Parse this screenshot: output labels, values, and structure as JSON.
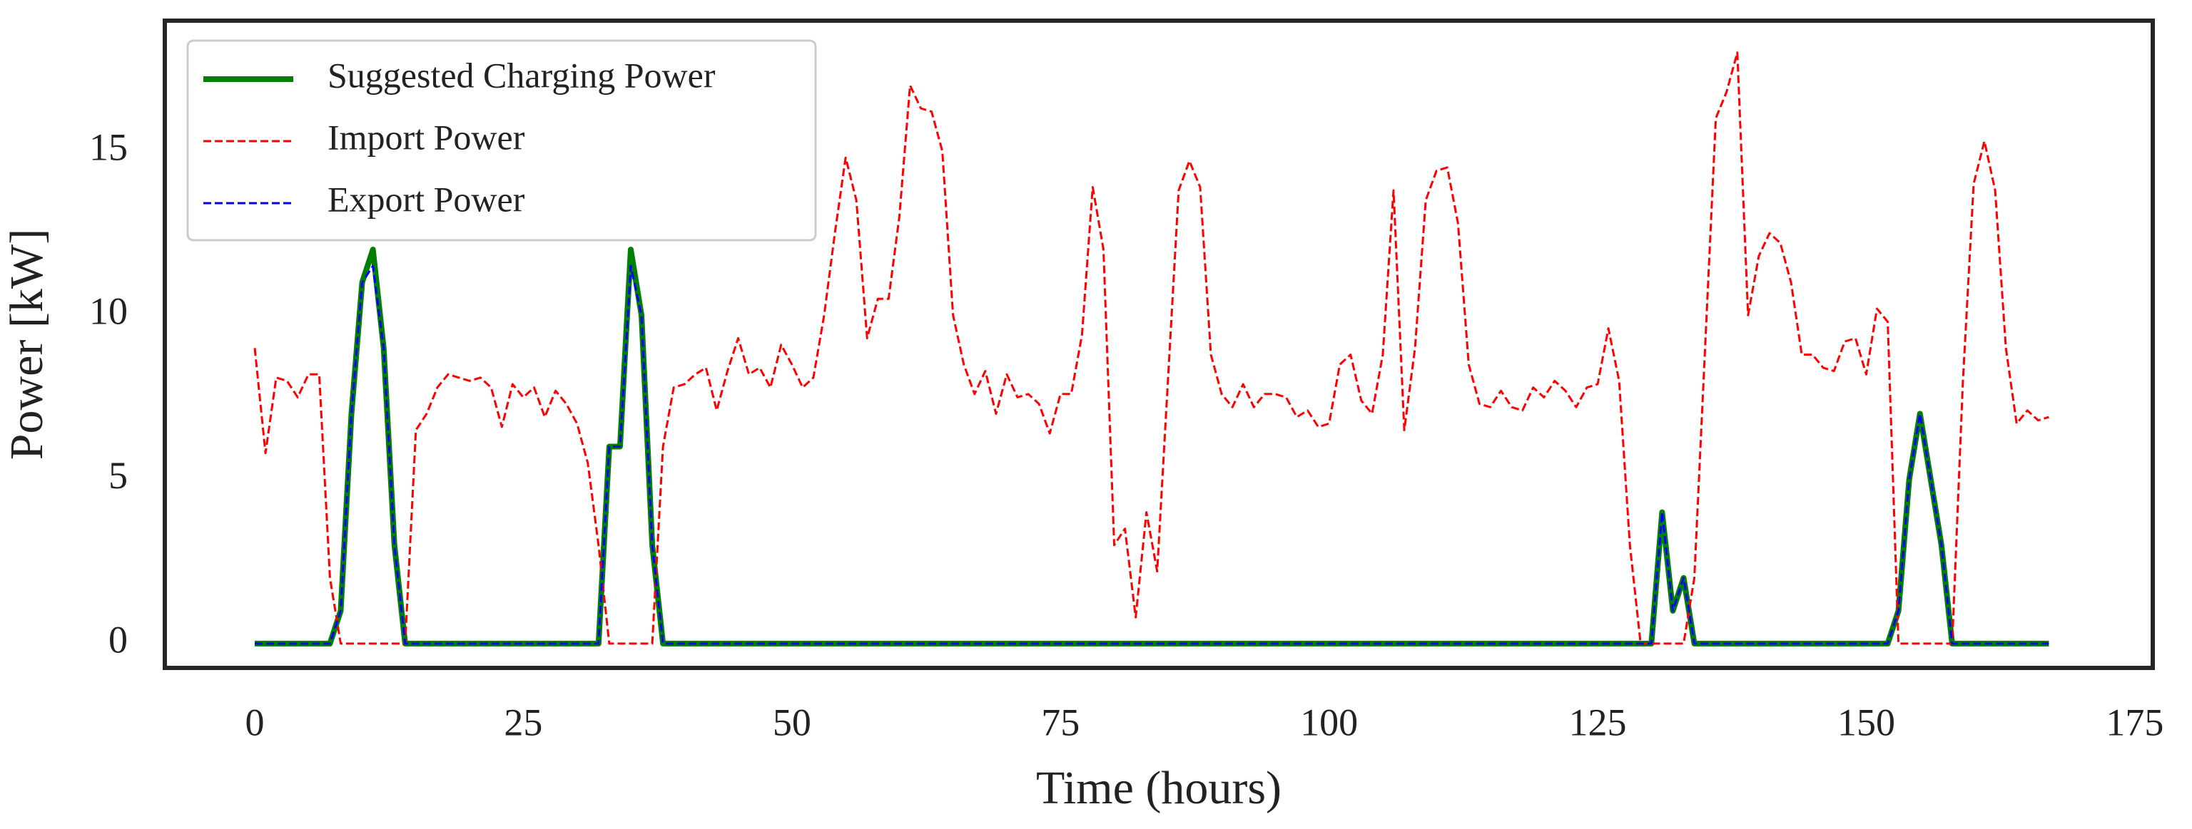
{
  "chart_data": {
    "type": "line",
    "xlabel": "Time (hours)",
    "ylabel": "Power [kW]",
    "x": [
      0,
      1,
      2,
      3,
      4,
      5,
      6,
      7,
      8,
      9,
      10,
      11,
      12,
      13,
      14,
      15,
      16,
      17,
      18,
      19,
      20,
      21,
      22,
      23,
      24,
      25,
      26,
      27,
      28,
      29,
      30,
      31,
      32,
      33,
      34,
      35,
      36,
      37,
      38,
      39,
      40,
      41,
      42,
      43,
      44,
      45,
      46,
      47,
      48,
      49,
      50,
      51,
      52,
      53,
      54,
      55,
      56,
      57,
      58,
      59,
      60,
      61,
      62,
      63,
      64,
      65,
      66,
      67,
      68,
      69,
      70,
      71,
      72,
      73,
      74,
      75,
      76,
      77,
      78,
      79,
      80,
      81,
      82,
      83,
      84,
      85,
      86,
      87,
      88,
      89,
      90,
      91,
      92,
      93,
      94,
      95,
      96,
      97,
      98,
      99,
      100,
      101,
      102,
      103,
      104,
      105,
      106,
      107,
      108,
      109,
      110,
      111,
      112,
      113,
      114,
      115,
      116,
      117,
      118,
      119,
      120,
      121,
      122,
      123,
      124,
      125,
      126,
      127,
      128,
      129,
      130,
      131,
      132,
      133,
      134,
      135,
      136,
      137,
      138,
      139,
      140,
      141,
      142,
      143,
      144,
      145,
      146,
      147,
      148,
      149,
      150,
      151,
      152,
      153,
      154,
      155,
      156,
      157,
      158,
      159,
      160,
      161,
      162,
      163,
      164,
      165,
      166,
      167
    ],
    "series": [
      {
        "name": "Suggested Charging Power",
        "color": "#008000",
        "style": "solid",
        "width": 8,
        "values": [
          0,
          0,
          0,
          0,
          0,
          0,
          0,
          0,
          1,
          7,
          11,
          12,
          9,
          3,
          0,
          0,
          0,
          0,
          0,
          0,
          0,
          0,
          0,
          0,
          0,
          0,
          0,
          0,
          0,
          0,
          0,
          0,
          0,
          6,
          6,
          12,
          10,
          3,
          0,
          0,
          0,
          0,
          0,
          0,
          0,
          0,
          0,
          0,
          0,
          0,
          0,
          0,
          0,
          0,
          0,
          0,
          0,
          0,
          0,
          0,
          0,
          0,
          0,
          0,
          0,
          0,
          0,
          0,
          0,
          0,
          0,
          0,
          0,
          0,
          0,
          0,
          0,
          0,
          0,
          0,
          0,
          0,
          0,
          0,
          0,
          0,
          0,
          0,
          0,
          0,
          0,
          0,
          0,
          0,
          0,
          0,
          0,
          0,
          0,
          0,
          0,
          0,
          0,
          0,
          0,
          0,
          0,
          0,
          0,
          0,
          0,
          0,
          0,
          0,
          0,
          0,
          0,
          0,
          0,
          0,
          0,
          0,
          0,
          0,
          0,
          0,
          0,
          0,
          0,
          0,
          0,
          4,
          1,
          2,
          0,
          0,
          0,
          0,
          0,
          0,
          0,
          0,
          0,
          0,
          0,
          0,
          0,
          0,
          0,
          0,
          0,
          0,
          0,
          1,
          5,
          7,
          5,
          3,
          0,
          0,
          0,
          0,
          0,
          0,
          0,
          0,
          0,
          0
        ]
      },
      {
        "name": "Import Power",
        "color": "#ff0000",
        "style": "dashed",
        "width": 3,
        "values": [
          9,
          5.8,
          8.1,
          8,
          7.5,
          8.2,
          8.2,
          2,
          0,
          0,
          0,
          0,
          0,
          0,
          0,
          6.5,
          7,
          7.8,
          8.2,
          8.1,
          8,
          8.1,
          7.8,
          6.6,
          7.9,
          7.5,
          7.8,
          6.9,
          7.7,
          7.3,
          6.7,
          5.5,
          3,
          0,
          0,
          0,
          0,
          0,
          6,
          7.8,
          7.9,
          8.2,
          8.4,
          7.1,
          8.3,
          9.3,
          8.2,
          8.4,
          7.8,
          9.1,
          8.5,
          7.8,
          8.1,
          10,
          12.5,
          14.8,
          13.5,
          9.3,
          10.5,
          10.5,
          13,
          17,
          16.3,
          16.2,
          15,
          10,
          8.5,
          7.6,
          8.3,
          7,
          8.2,
          7.5,
          7.6,
          7.3,
          6.4,
          7.6,
          7.6,
          9.4,
          13.9,
          12,
          3,
          3.5,
          0.8,
          4,
          2.2,
          8,
          13.8,
          14.7,
          13.9,
          8.8,
          7.6,
          7.2,
          7.9,
          7.2,
          7.6,
          7.6,
          7.5,
          6.9,
          7.1,
          6.6,
          6.7,
          8.5,
          8.8,
          7.4,
          7,
          8.8,
          13.8,
          6.5,
          9,
          13.5,
          14.4,
          14.5,
          12.8,
          8.5,
          7.3,
          7.2,
          7.7,
          7.2,
          7.1,
          7.8,
          7.5,
          8,
          7.7,
          7.2,
          7.8,
          7.9,
          9.6,
          8,
          3,
          0,
          0,
          0,
          0,
          0,
          2,
          9,
          16,
          16.8,
          18,
          10,
          11.8,
          12.5,
          12.2,
          11,
          8.8,
          8.8,
          8.4,
          8.3,
          9.2,
          9.3,
          8.2,
          10.2,
          9.8,
          0,
          0,
          0,
          0,
          0,
          0,
          8,
          14,
          15.3,
          13.8,
          9,
          6.7,
          7.1,
          6.8,
          6.9
        ]
      },
      {
        "name": "Export Power",
        "color": "#0000ff",
        "style": "dashed",
        "width": 3,
        "values": [
          0,
          0,
          0,
          0,
          0,
          0,
          0,
          0,
          1,
          7,
          11,
          11.5,
          9,
          3,
          0,
          0,
          0,
          0,
          0,
          0,
          0,
          0,
          0,
          0,
          0,
          0,
          0,
          0,
          0,
          0,
          0,
          0,
          0,
          6,
          6,
          11.5,
          10,
          3,
          0,
          0,
          0,
          0,
          0,
          0,
          0,
          0,
          0,
          0,
          0,
          0,
          0,
          0,
          0,
          0,
          0,
          0,
          0,
          0,
          0,
          0,
          0,
          0,
          0,
          0,
          0,
          0,
          0,
          0,
          0,
          0,
          0,
          0,
          0,
          0,
          0,
          0,
          0,
          0,
          0,
          0,
          0,
          0,
          0,
          0,
          0,
          0,
          0,
          0,
          0,
          0,
          0,
          0,
          0,
          0,
          0,
          0,
          0,
          0,
          0,
          0,
          0,
          0,
          0,
          0,
          0,
          0,
          0,
          0,
          0,
          0,
          0,
          0,
          0,
          0,
          0,
          0,
          0,
          0,
          0,
          0,
          0,
          0,
          0,
          0,
          0,
          0,
          0,
          0,
          0,
          0,
          0,
          4,
          1,
          2,
          0,
          0,
          0,
          0,
          0,
          0,
          0,
          0,
          0,
          0,
          0,
          0,
          0,
          0,
          0,
          0,
          0,
          0,
          0,
          1,
          5,
          7,
          5,
          3,
          0,
          0,
          0,
          0,
          0,
          0,
          0,
          0,
          0,
          0
        ]
      }
    ],
    "xlim": [
      -8.37,
      176.67
    ],
    "ylim": [
      -0.74,
      18.97
    ],
    "xticks": [
      0,
      25,
      50,
      75,
      100,
      125,
      150,
      175
    ],
    "yticks": [
      0,
      5,
      10,
      15
    ],
    "grid": false,
    "legend": "upper left"
  }
}
